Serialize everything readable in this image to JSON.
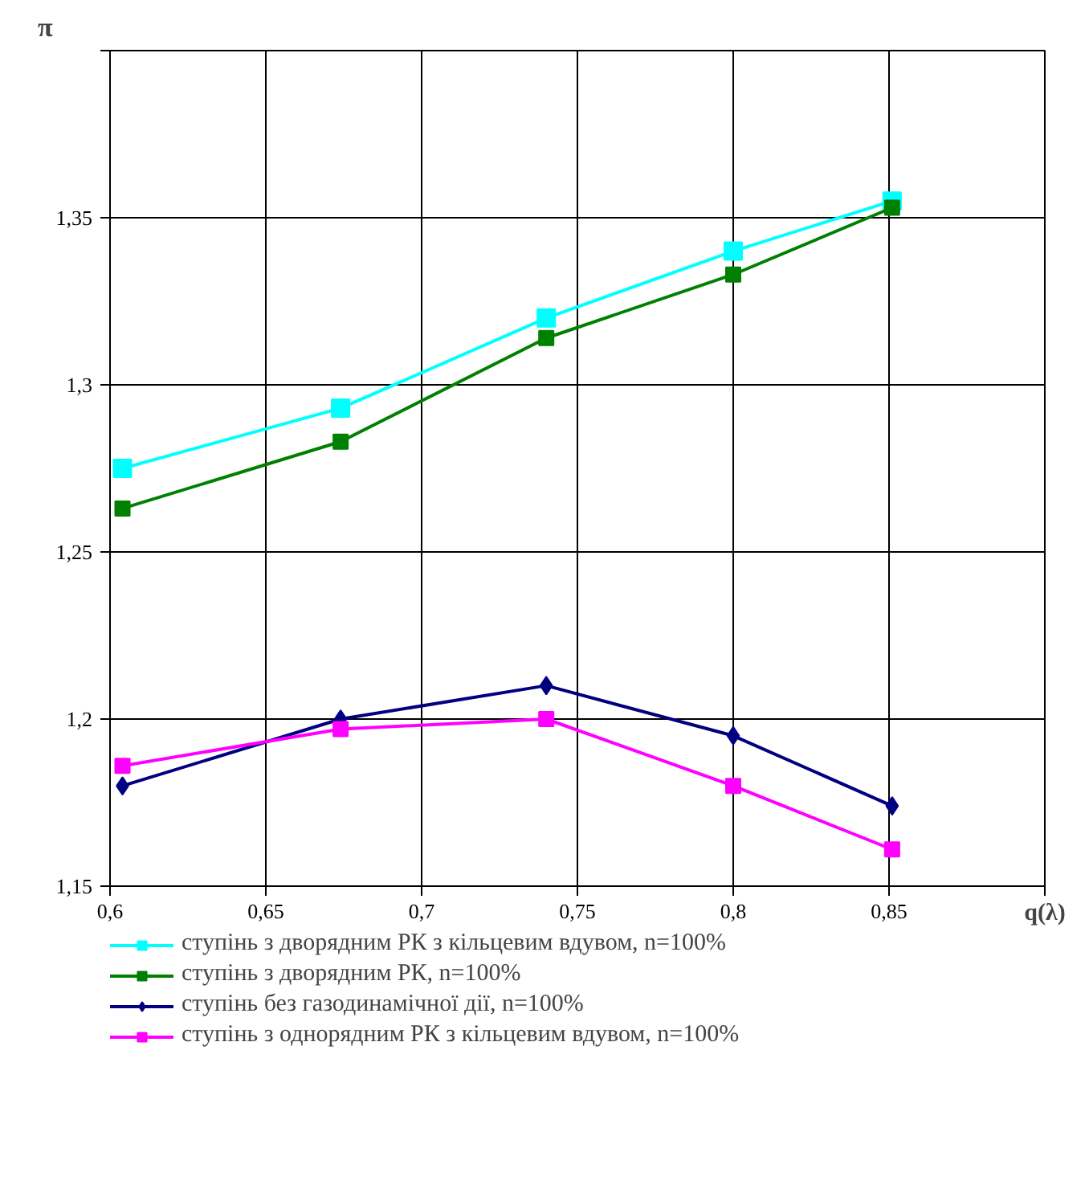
{
  "chart_data": {
    "type": "line",
    "xlabel": "q(λ)",
    "ylabel": "π",
    "x": [
      0.604,
      0.674,
      0.74,
      0.8,
      0.851
    ],
    "series": [
      {
        "name": "ступінь з дворядним РК з кільцевим вдувом, n=100%",
        "color": "#00ffff",
        "marker": "square",
        "values": [
          1.275,
          1.293,
          1.32,
          1.34,
          1.355
        ]
      },
      {
        "name": "ступінь з дворядним РК, n=100%",
        "color": "#008000",
        "marker": "square",
        "values": [
          1.263,
          1.283,
          1.314,
          1.333,
          1.353
        ]
      },
      {
        "name": "ступінь без газодинамічної дії, n=100%",
        "color": "#000080",
        "marker": "diamond",
        "values": [
          1.18,
          1.2,
          1.21,
          1.195,
          1.174
        ]
      },
      {
        "name": "ступінь з однорядним РК з кільцевим вдувом, n=100%",
        "color": "#ff00ff",
        "marker": "square",
        "values": [
          1.186,
          1.197,
          1.2,
          1.18,
          1.161
        ]
      }
    ],
    "xlim": [
      0.6,
      0.9
    ],
    "ylim": [
      1.15,
      1.4
    ],
    "xticks": [
      {
        "value": 0.6,
        "label": "0,6"
      },
      {
        "value": 0.65,
        "label": "0,65"
      },
      {
        "value": 0.7,
        "label": "0,7"
      },
      {
        "value": 0.75,
        "label": "0,75"
      },
      {
        "value": 0.8,
        "label": "0,8"
      },
      {
        "value": 0.85,
        "label": "0,85"
      },
      {
        "value": 0.9,
        "label": null
      }
    ],
    "yticks": [
      {
        "value": 1.15,
        "label": "1,15"
      },
      {
        "value": 1.2,
        "label": "1,2"
      },
      {
        "value": 1.25,
        "label": "1,25"
      },
      {
        "value": 1.3,
        "label": "1,3"
      },
      {
        "value": 1.35,
        "label": "1,35"
      },
      {
        "value": 1.4,
        "label": null
      }
    ],
    "grid": true,
    "legend": "bottom",
    "line_style": "solid"
  }
}
